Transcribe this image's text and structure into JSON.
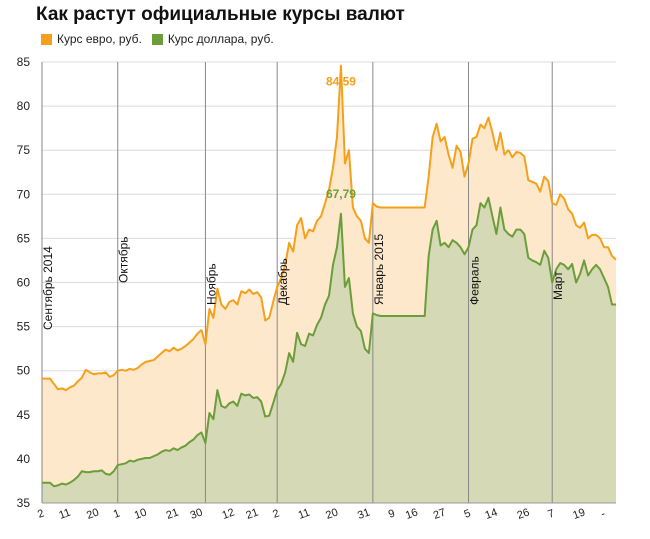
{
  "title": "Как растут официальные курсы валют",
  "chart_data": {
    "type": "area",
    "title": "Как растут официальные курсы валют",
    "ylim": [
      35,
      85
    ],
    "yticks": [
      35,
      40,
      45,
      50,
      55,
      60,
      65,
      70,
      75,
      80,
      85
    ],
    "grid": "horizontal",
    "legend_position": "top-left",
    "x_tick_labels": [
      "2",
      "11",
      "20",
      "1",
      "10",
      "21",
      "30",
      "12",
      "21",
      "2",
      "11",
      "20",
      "31",
      "9",
      "16",
      "27",
      "5",
      "14",
      "26",
      "7",
      "19",
      "-"
    ],
    "month_labels": [
      "Сентябрь 2014",
      "Октябрь",
      "Ноябрь",
      "Декабрь",
      "Январь 2015",
      "Февраль",
      "Март"
    ],
    "annotations": [
      {
        "series": "Курс евро, руб.",
        "label": "84,59",
        "value": 84.59
      },
      {
        "series": "Курс доллара, руб.",
        "label": "67,79",
        "value": 67.79
      }
    ],
    "series": [
      {
        "name": "Курс евро, руб.",
        "color": "#f5a01a",
        "fill": "#fde8cc",
        "values": [
          49.1,
          49.1,
          49.1,
          48.5,
          47.9,
          48.0,
          47.8,
          48.1,
          48.3,
          48.8,
          49.2,
          50.1,
          49.8,
          49.6,
          49.7,
          49.7,
          49.8,
          49.3,
          49.5,
          50.0,
          50.1,
          50.0,
          50.2,
          50.1,
          50.3,
          50.7,
          51.0,
          51.1,
          51.2,
          51.6,
          52.0,
          52.4,
          52.2,
          52.6,
          52.3,
          52.5,
          52.8,
          53.2,
          53.6,
          54.2,
          54.6,
          53.0,
          57.0,
          56.0,
          59.3,
          57.5,
          57.0,
          57.8,
          58.0,
          57.5,
          59.0,
          58.8,
          59.2,
          58.7,
          58.9,
          58.3,
          55.7,
          56.0,
          57.8,
          59.5,
          60.5,
          62.0,
          64.5,
          63.5,
          66.5,
          67.3,
          65.0,
          66.0,
          65.8,
          67.0,
          67.5,
          69.0,
          70.5,
          73.0,
          76.5,
          84.59,
          73.5,
          75.0,
          68.5,
          67.5,
          67.0,
          65.0,
          64.5,
          69.0,
          68.6,
          68.5,
          68.5,
          68.5,
          68.5,
          68.5,
          68.5,
          68.5,
          68.5,
          68.5,
          68.5,
          68.5,
          68.5,
          72.0,
          76.5,
          78.0,
          76.0,
          76.5,
          74.5,
          73.0,
          75.5,
          74.8,
          72.0,
          73.5,
          76.3,
          76.5,
          77.9,
          77.5,
          78.7,
          77.0,
          75.0,
          77.0,
          74.5,
          75.0,
          74.2,
          74.8,
          74.7,
          74.3,
          71.6,
          71.4,
          71.2,
          70.3,
          72.0,
          71.5,
          69.0,
          68.8,
          70.0,
          69.5,
          68.3,
          67.8,
          66.5,
          66.2,
          66.8,
          65.0,
          65.4,
          65.4,
          65.0,
          64.0,
          64.0,
          63.0,
          62.6
        ]
      },
      {
        "name": "Курс доллара, руб.",
        "color": "#6b9e3a",
        "fill": "#d5d9b5",
        "values": [
          37.3,
          37.3,
          37.3,
          36.9,
          37.0,
          37.2,
          37.1,
          37.3,
          37.6,
          38.0,
          38.6,
          38.5,
          38.5,
          38.6,
          38.6,
          38.7,
          38.3,
          38.2,
          38.6,
          39.3,
          39.4,
          39.5,
          39.8,
          39.7,
          39.9,
          40.0,
          40.1,
          40.1,
          40.3,
          40.5,
          40.8,
          41.0,
          40.9,
          41.2,
          41.0,
          41.3,
          41.5,
          41.9,
          42.2,
          42.7,
          43.0,
          41.8,
          45.2,
          44.5,
          47.8,
          46.0,
          45.8,
          46.3,
          46.5,
          46.0,
          47.4,
          47.2,
          47.3,
          46.9,
          47.0,
          46.5,
          44.8,
          44.9,
          46.3,
          47.8,
          48.5,
          49.8,
          52.0,
          51.0,
          54.3,
          53.0,
          52.8,
          54.2,
          54.0,
          55.2,
          56.0,
          57.5,
          58.5,
          62.0,
          64.0,
          67.79,
          59.5,
          60.5,
          56.5,
          55.0,
          54.5,
          52.5,
          52.0,
          56.5,
          56.3,
          56.2,
          56.2,
          56.2,
          56.2,
          56.2,
          56.2,
          56.2,
          56.2,
          56.2,
          56.2,
          56.2,
          56.2,
          63.0,
          66.0,
          67.0,
          64.2,
          64.5,
          64.0,
          64.8,
          64.5,
          64.0,
          63.2,
          64.0,
          66.0,
          66.5,
          69.0,
          68.5,
          69.6,
          67.5,
          65.5,
          68.5,
          66.0,
          65.5,
          65.2,
          66.0,
          66.0,
          65.5,
          62.8,
          62.5,
          62.3,
          62.0,
          63.6,
          62.8,
          60.0,
          61.5,
          62.2,
          62.0,
          61.5,
          62.1,
          60.0,
          61.0,
          62.5,
          60.8,
          61.5,
          62.0,
          61.5,
          60.5,
          59.5,
          57.5,
          57.5
        ]
      }
    ]
  }
}
